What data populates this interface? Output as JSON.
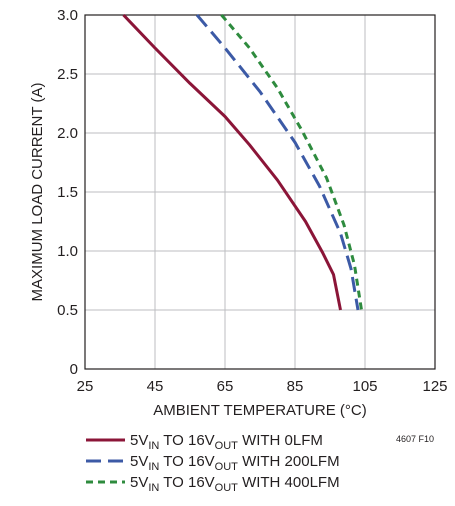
{
  "chart_data": {
    "type": "line",
    "xlabel": "AMBIENT TEMPERATURE (°C)",
    "ylabel": "MAXIMUM LOAD CURRENT (A)",
    "xlim": [
      25,
      125
    ],
    "ylim": [
      0,
      3.0
    ],
    "x_ticks": [
      25,
      45,
      65,
      85,
      105,
      125
    ],
    "y_ticks": [
      0,
      0.5,
      1.0,
      1.5,
      2.0,
      2.5,
      3.0
    ],
    "x_tick_labels": [
      "25",
      "45",
      "65",
      "85",
      "105",
      "125"
    ],
    "y_tick_labels": [
      "0",
      "0.5",
      "1.0",
      "1.5",
      "2.0",
      "2.5",
      "3.0"
    ],
    "grid": true,
    "legend_position": "bottom",
    "figure_code": "4607 F10",
    "series": [
      {
        "legend": {
          "a": "5V",
          "a_sub": "IN",
          "b": " TO 16V",
          "b_sub": "OUT",
          "c": " WITH 0LFM"
        },
        "color": "#8b1538",
        "dash": "solid",
        "points": [
          [
            36,
            3.0
          ],
          [
            45,
            2.72
          ],
          [
            55,
            2.42
          ],
          [
            65,
            2.14
          ],
          [
            72,
            1.9
          ],
          [
            80,
            1.6
          ],
          [
            88,
            1.25
          ],
          [
            93,
            0.98
          ],
          [
            96,
            0.8
          ],
          [
            98,
            0.5
          ]
        ]
      },
      {
        "legend": {
          "a": "5V",
          "a_sub": "IN",
          "b": " TO 16V",
          "b_sub": "OUT",
          "c": " WITH 200LFM"
        },
        "color": "#3c5aa6",
        "dash": "long-dash",
        "points": [
          [
            57,
            3.0
          ],
          [
            65,
            2.72
          ],
          [
            75,
            2.35
          ],
          [
            85,
            1.92
          ],
          [
            92,
            1.55
          ],
          [
            98,
            1.15
          ],
          [
            101,
            0.85
          ],
          [
            103,
            0.5
          ]
        ]
      },
      {
        "legend": {
          "a": "5V",
          "a_sub": "IN",
          "b": " TO 16V",
          "b_sub": "OUT",
          "c": " WITH 400LFM"
        },
        "color": "#2e8b3e",
        "dash": "short-dash",
        "points": [
          [
            64,
            3.0
          ],
          [
            72,
            2.72
          ],
          [
            80,
            2.38
          ],
          [
            87,
            2.02
          ],
          [
            94,
            1.62
          ],
          [
            99,
            1.22
          ],
          [
            102,
            0.88
          ],
          [
            104,
            0.5
          ]
        ]
      }
    ]
  }
}
